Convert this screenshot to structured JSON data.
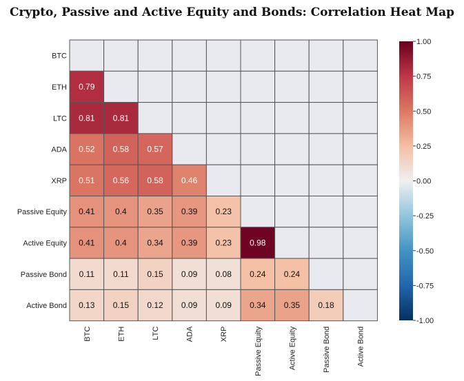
{
  "chart_data": {
    "type": "heatmap",
    "title": "Crypto, Passive and Active Equity and Bonds: Correlation Heat Map",
    "rows": [
      "BTC",
      "ETH",
      "LTC",
      "ADA",
      "XRP",
      "Passive Equity",
      "Active Equity",
      "Passive Bond",
      "Active Bond"
    ],
    "columns": [
      "BTC",
      "ETH",
      "LTC",
      "ADA",
      "XRP",
      "Passive Equity",
      "Active Equity",
      "Passive Bond",
      "Active Bond"
    ],
    "mask": "upper-triangle-including-diagonal",
    "values": [
      [
        null,
        null,
        null,
        null,
        null,
        null,
        null,
        null,
        null
      ],
      [
        0.79,
        null,
        null,
        null,
        null,
        null,
        null,
        null,
        null
      ],
      [
        0.81,
        0.81,
        null,
        null,
        null,
        null,
        null,
        null,
        null
      ],
      [
        0.52,
        0.58,
        0.57,
        null,
        null,
        null,
        null,
        null,
        null
      ],
      [
        0.51,
        0.56,
        0.58,
        0.46,
        null,
        null,
        null,
        null,
        null
      ],
      [
        0.41,
        0.4,
        0.35,
        0.39,
        0.23,
        null,
        null,
        null,
        null
      ],
      [
        0.41,
        0.4,
        0.34,
        0.39,
        0.23,
        0.98,
        null,
        null,
        null
      ],
      [
        0.11,
        0.11,
        0.15,
        0.09,
        0.08,
        0.24,
        0.24,
        null,
        null
      ],
      [
        0.13,
        0.15,
        0.12,
        0.09,
        0.09,
        0.34,
        0.35,
        0.18,
        null
      ]
    ],
    "colorbar": {
      "range": [
        -1.0,
        1.0
      ],
      "ticks": [
        1.0,
        0.75,
        0.5,
        0.25,
        0.0,
        -0.25,
        -0.5,
        -0.75,
        -1.0
      ],
      "tick_labels": [
        "1.00",
        "0.75",
        "0.50",
        "0.25",
        "0.00",
        "-0.25",
        "-0.50",
        "-0.75",
        "-1.00"
      ],
      "colormap": "RdBu_r"
    }
  },
  "colors": {
    "masked_cell": "#e9e9f0",
    "grid_line": "#555555"
  }
}
